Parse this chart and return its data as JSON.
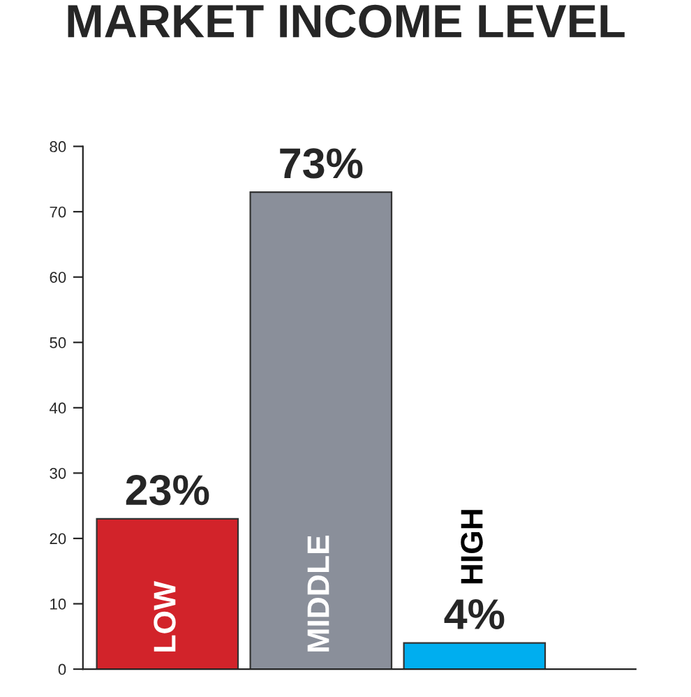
{
  "chart_data": {
    "type": "bar",
    "title": "MARKET INCOME LEVEL",
    "categories": [
      "LOW",
      "MIDDLE",
      "HIGH"
    ],
    "values": [
      23,
      73,
      4
    ],
    "colors": [
      "#d2232a",
      "#8a8f9a",
      "#00aeef"
    ],
    "value_labels": [
      "23%",
      "73%",
      "4%"
    ],
    "ylim": [
      0,
      80
    ],
    "yticks": [
      0,
      10,
      20,
      30,
      40,
      50,
      60,
      70,
      80
    ],
    "grid": false,
    "legend": false
  }
}
